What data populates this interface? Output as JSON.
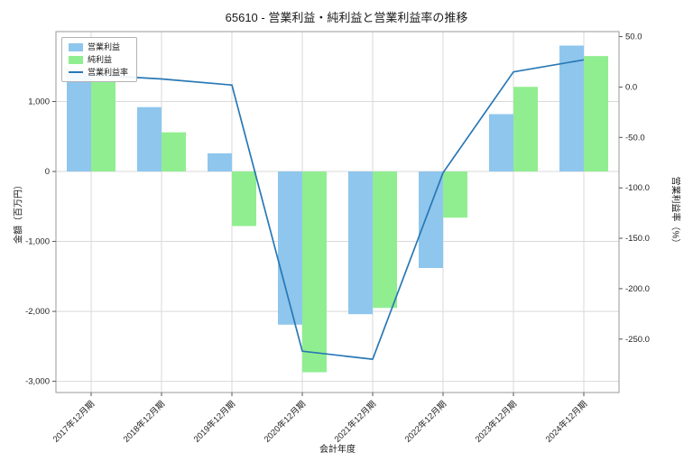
{
  "chart_data": {
    "type": "bar+line",
    "title": "65610 - 営業利益・純利益と営業利益率の推移",
    "xlabel": "会計年度",
    "ylabel_left": "金額（百万円）",
    "ylabel_right": "営業利益率（%）",
    "categories": [
      "2017年12月期",
      "2018年12月期",
      "2019年12月期",
      "2020年12月期",
      "2021年12月期",
      "2022年12月期",
      "2023年12月期",
      "2024年12月期"
    ],
    "series": [
      {
        "name": "営業利益",
        "type": "bar",
        "axis": "left",
        "color": "#8ec6ed",
        "values": [
          1400,
          920,
          260,
          -2190,
          -2040,
          -1380,
          820,
          1800
        ]
      },
      {
        "name": "純利益",
        "type": "bar",
        "axis": "left",
        "color": "#90ee90",
        "values": [
          1280,
          560,
          -780,
          -2870,
          -1950,
          -660,
          1210,
          1650
        ]
      },
      {
        "name": "営業利益率",
        "type": "line",
        "axis": "right",
        "color": "#2878b5",
        "values": [
          12,
          8,
          2,
          -262,
          -270,
          -85,
          15,
          27
        ]
      }
    ],
    "left_axis": {
      "ticks": [
        1000,
        0,
        -1000,
        -2000,
        -3000
      ],
      "tick_labels": [
        "1,000",
        "0",
        "-1,000",
        "-2,000",
        "-3,000"
      ],
      "ylim": [
        -3160,
        2000
      ]
    },
    "right_axis": {
      "ticks": [
        50,
        0,
        -50,
        -100,
        -150,
        -200,
        -250
      ],
      "tick_labels": [
        "50.0",
        "0.0",
        "-50.0",
        "-100.0",
        "-150.0",
        "-200.0",
        "-250.0"
      ],
      "ylim": [
        -303,
        55
      ]
    },
    "grid": true,
    "grid_color": "#d9d9d9",
    "legend_position": "upper left"
  }
}
